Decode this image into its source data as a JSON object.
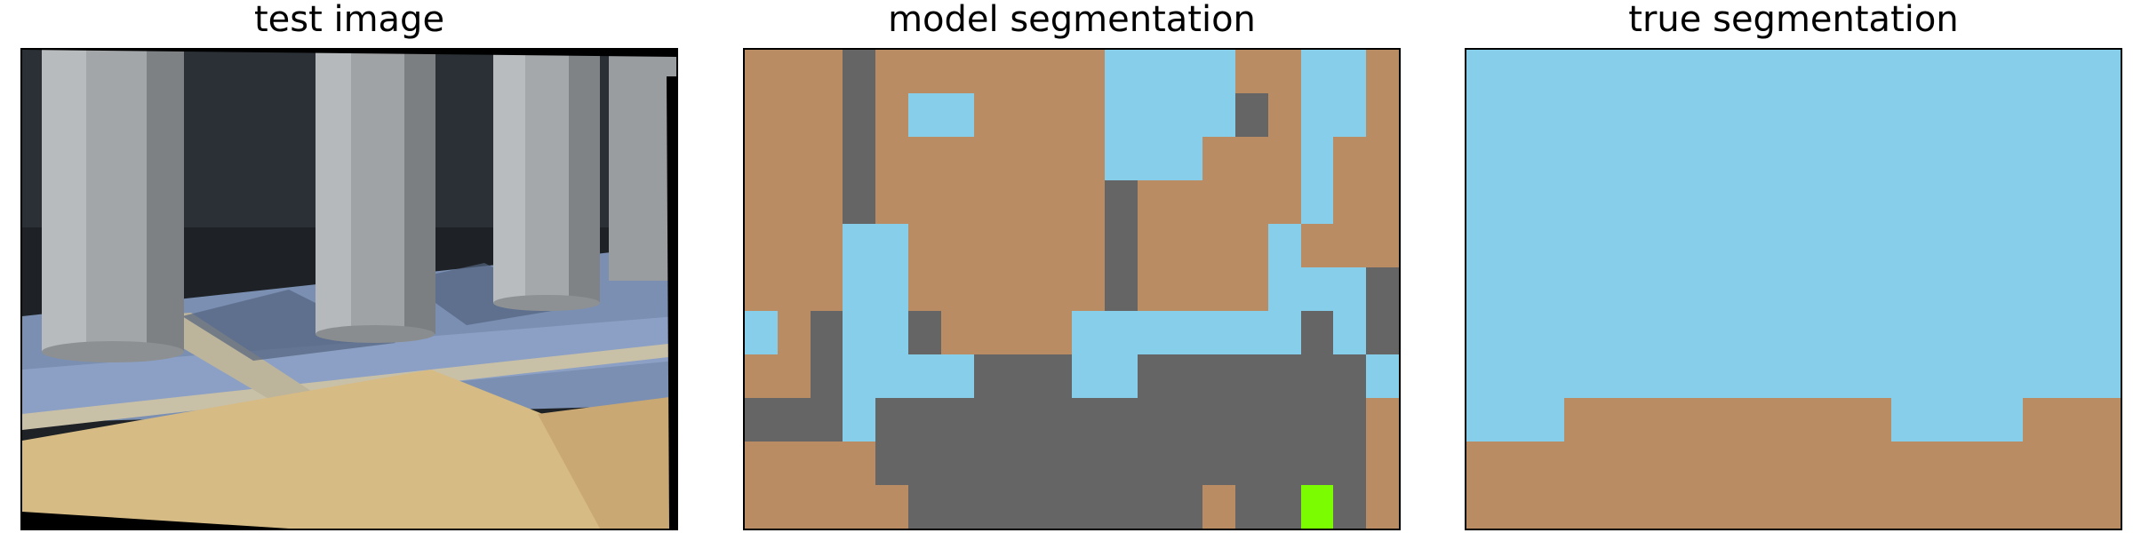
{
  "panels": [
    {
      "title": "test image"
    },
    {
      "title": "model segmentation"
    },
    {
      "title": "true segmentation"
    }
  ],
  "colors": {
    "wood": "#b98c63",
    "sky_blue": "#87ceeb",
    "gray": "#656565",
    "green": "#7cfc00",
    "pillar": "#a9a9a9",
    "floor_blue": "#7890b4",
    "osb": "#d2b982"
  },
  "model_segmentation": {
    "cols": 20,
    "rows": 11,
    "legend_key": {
      "W": "wood",
      "B": "sky_blue",
      "G": "gray",
      "L": "green"
    },
    "grid": [
      "WWWGWWWWWWWBBBBWWBBW",
      "WWWGWBBWWWWBBBBGWBBW",
      "WWWGWWWWWWWBBBWWWBWW",
      "WWWGWWWWWWWGWWWWWBWW",
      "WWWBBWWWWWWGWWWWBWWW",
      "WWWBBWWWWWWGWWWWBBBG",
      "BWGBBGWWWWBBBBBBBGBG",
      "WWGBBBBGGGBBGGGGGGGB",
      "GGGBGGGGGGGGGGGGGGGW",
      "WWWWGGGGGGGGGGGGGGGW",
      "WWWWWGGGGGGGGGWGGLGW"
    ]
  },
  "true_segmentation": {
    "cols": 20,
    "rows": 11,
    "legend_key": {
      "W": "wood",
      "B": "sky_blue"
    },
    "grid": [
      "BBBBBBBBBBBBBBBBBBBB",
      "BBBBBBBBBBBBBBBBBBBB",
      "BBBBBBBBBBBBBBBBBBBB",
      "BBBBBBBBBBBBBBBBBBBB",
      "BBBBBBBBBBBBBBBBBBBB",
      "BBBBBBBBBBBBBBBBBBBB",
      "BBBBBBBBBBBBBBBBBBBB",
      "BBBBBBBBBBBBBBBBBBBB",
      "BBBWWWWWWWWWWBBBBWWW",
      "WWWWWWWWWWWWWWWWWWWW",
      "WWWWWWWWWWWWWWWWWWWW"
    ]
  }
}
